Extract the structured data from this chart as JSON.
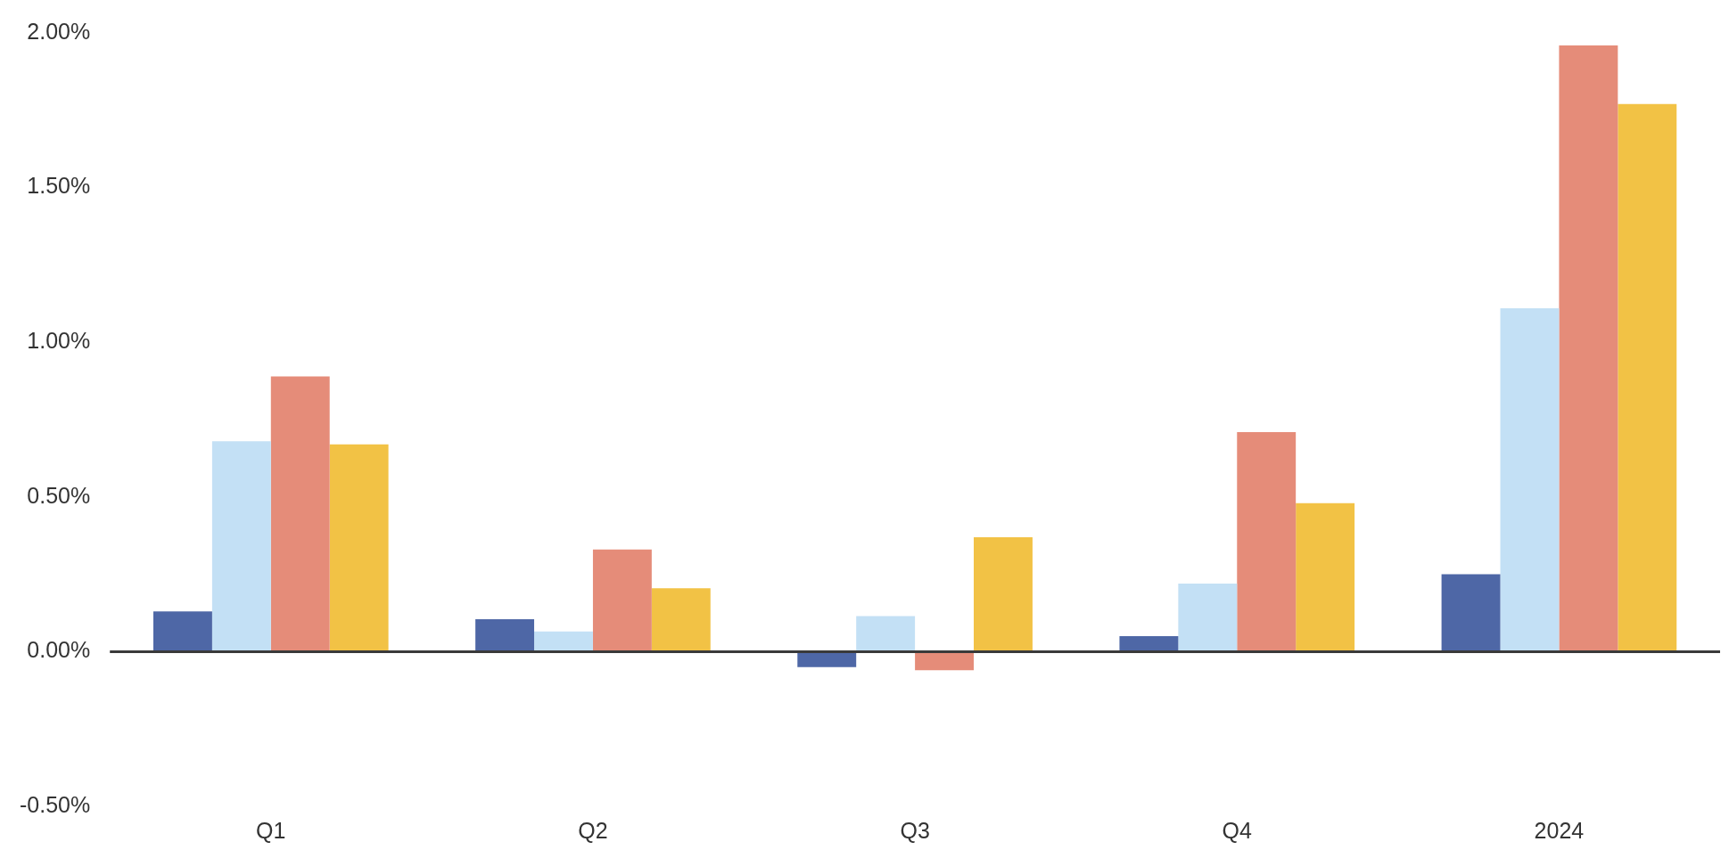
{
  "chart_data": {
    "type": "bar",
    "categories": [
      "Q1",
      "Q2",
      "Q3",
      "Q4",
      "2024"
    ],
    "series": [
      {
        "color": "#4e67a6",
        "values": [
          0.13,
          0.105,
          -0.05,
          0.05,
          0.25
        ]
      },
      {
        "color": "#c3e0f5",
        "values": [
          0.68,
          0.065,
          0.115,
          0.22,
          1.11
        ]
      },
      {
        "color": "#e58c79",
        "values": [
          0.89,
          0.33,
          -0.06,
          0.71,
          1.96
        ]
      },
      {
        "color": "#f2c245",
        "values": [
          0.67,
          0.205,
          0.37,
          0.48,
          1.77
        ]
      }
    ],
    "ylim": [
      -0.5,
      2
    ],
    "yticks": [
      {
        "value": -0.5,
        "label": "-0.50%"
      },
      {
        "value": 0,
        "label": "0.00%"
      },
      {
        "value": 0.5,
        "label": "0.50%"
      },
      {
        "value": 1,
        "label": "1.00%"
      },
      {
        "value": 1.5,
        "label": "1.50%"
      },
      {
        "value": 2,
        "label": "2.00%"
      }
    ],
    "ref_lines": [
      {
        "axis": "y",
        "value": 0,
        "color": "#3a3a3a"
      }
    ],
    "grid": false,
    "legend": false
  }
}
